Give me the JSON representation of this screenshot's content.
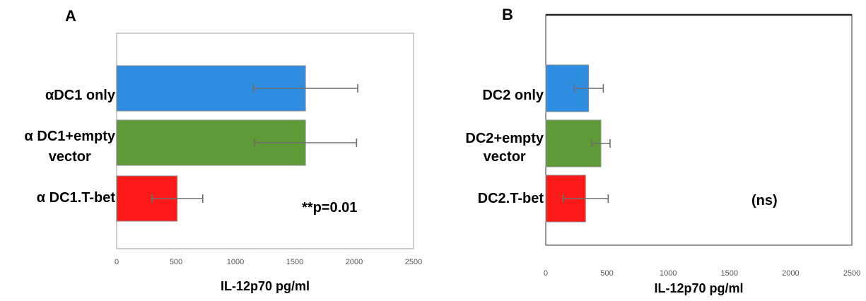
{
  "chart_data": [
    {
      "type": "bar",
      "orientation": "horizontal",
      "panel_label": "A",
      "categories": [
        "αDC1 only",
        "α DC1+empty vector",
        "α DC1.T-bet"
      ],
      "category_lines": [
        [
          "αDC1 only"
        ],
        [
          "α DC1+empty",
          "vector"
        ],
        [
          "α DC1.T-bet"
        ]
      ],
      "values": [
        1590,
        1590,
        510
      ],
      "errors": [
        440,
        430,
        215
      ],
      "colors": [
        "#2e8de0",
        "#5e9a38",
        "#ff1a1a"
      ],
      "xlabel": "IL-12p70 pg/ml",
      "ylabel": "",
      "xlim": [
        0,
        2500
      ],
      "xticks": [
        0,
        500,
        1000,
        1500,
        2000,
        2500
      ],
      "annotation": "**p=0.01",
      "grid": false
    },
    {
      "type": "bar",
      "orientation": "horizontal",
      "panel_label": "B",
      "categories": [
        "DC2 only",
        "DC2+empty vector",
        "DC2.T-bet"
      ],
      "category_lines": [
        [
          "DC2 only"
        ],
        [
          "DC2+empty",
          "vector"
        ],
        [
          "DC2.T-bet"
        ]
      ],
      "values": [
        350,
        450,
        325
      ],
      "errors": [
        120,
        75,
        185
      ],
      "colors": [
        "#2e8de0",
        "#5e9a38",
        "#ff1a1a"
      ],
      "xlabel": "IL-12p70 pg/ml",
      "ylabel": "",
      "xlim": [
        0,
        2500
      ],
      "xticks": [
        0,
        500,
        1000,
        1500,
        2000,
        2500
      ],
      "annotation": "(ns)",
      "grid": false
    }
  ]
}
